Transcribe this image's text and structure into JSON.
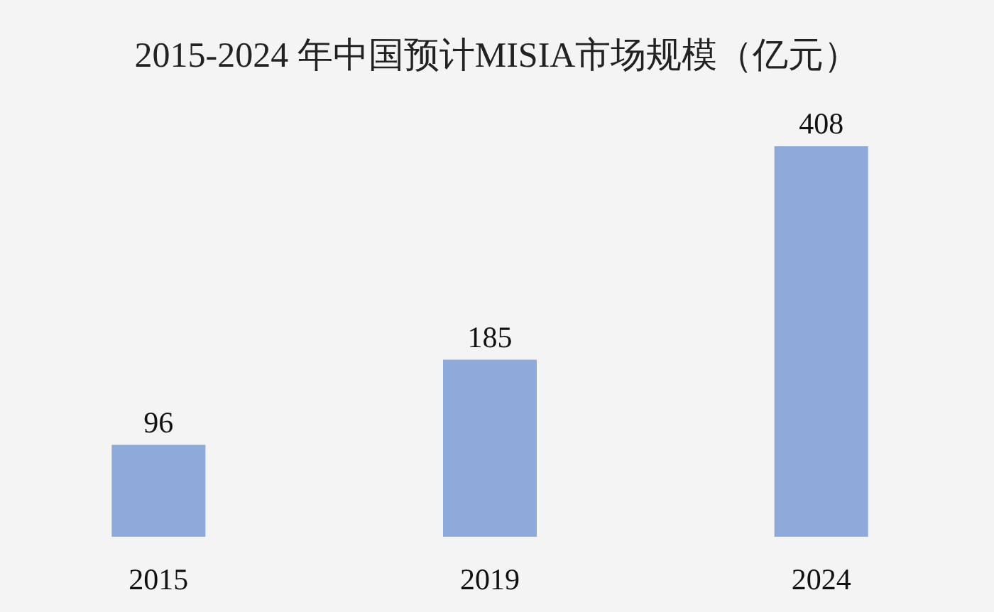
{
  "chart_data": {
    "type": "bar",
    "title": "2015-2024 年中国预计MISIA市场规模（亿元）",
    "categories": [
      "2015",
      "2019",
      "2024"
    ],
    "values": [
      96,
      185,
      408
    ],
    "color": "#8eaadb",
    "data_labels": true
  }
}
